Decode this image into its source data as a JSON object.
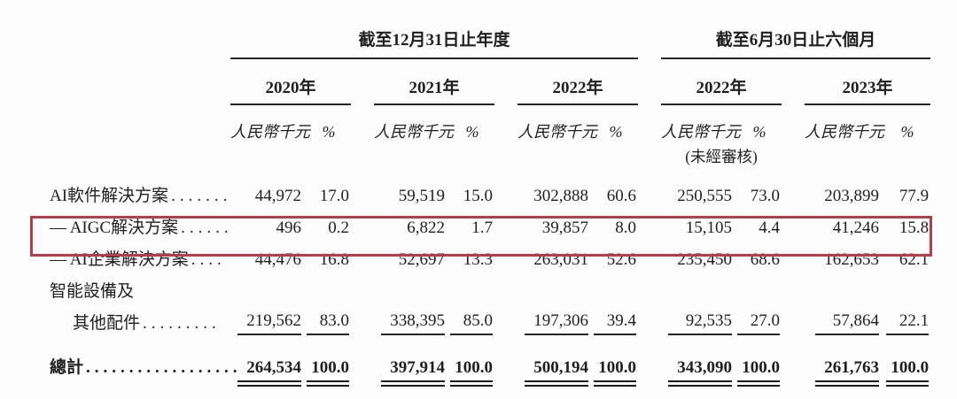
{
  "table": {
    "groups": [
      {
        "title": "截至12月31日止年度",
        "years": [
          "2020年",
          "2021年",
          "2022年"
        ]
      },
      {
        "title": "截至6月30日止六個月",
        "years": [
          "2022年",
          "2023年"
        ]
      }
    ],
    "amount_header": "人民幣千元",
    "percent_header": "%",
    "unaudited_note": "(未經審核)",
    "unaudited_under_year_index": 3,
    "highlight_color": "#b63c4a",
    "rows": [
      {
        "label": "AI軟件解決方案",
        "dots": ".......",
        "indent": false,
        "bold": false,
        "highlight": false,
        "rule_below": false,
        "double_rule": false,
        "cells": [
          [
            "44,972",
            "17.0"
          ],
          [
            "59,519",
            "15.0"
          ],
          [
            "302,888",
            "60.6"
          ],
          [
            "250,555",
            "73.0"
          ],
          [
            "203,899",
            "77.9"
          ]
        ]
      },
      {
        "label": "— AIGC解決方案",
        "dots": "......",
        "indent": false,
        "bold": false,
        "highlight": false,
        "rule_below": false,
        "double_rule": false,
        "cells": [
          [
            "496",
            "0.2"
          ],
          [
            "6,822",
            "1.7"
          ],
          [
            "39,857",
            "8.0"
          ],
          [
            "15,105",
            "4.4"
          ],
          [
            "41,246",
            "15.8"
          ]
        ]
      },
      {
        "label": "— AI企業解決方案",
        "dots": "....",
        "indent": false,
        "bold": false,
        "highlight": true,
        "rule_below": false,
        "double_rule": false,
        "cells": [
          [
            "44,476",
            "16.8"
          ],
          [
            "52,697",
            "13.3"
          ],
          [
            "263,031",
            "52.6"
          ],
          [
            "235,450",
            "68.6"
          ],
          [
            "162,653",
            "62.1"
          ]
        ]
      },
      {
        "label": "智能設備及",
        "dots": "",
        "indent": false,
        "bold": false,
        "highlight": false,
        "rule_below": false,
        "double_rule": false,
        "cells": null
      },
      {
        "label": "其他配件",
        "dots": ".........",
        "indent": true,
        "bold": false,
        "highlight": false,
        "rule_below": true,
        "double_rule": false,
        "cells": [
          [
            "219,562",
            "83.0"
          ],
          [
            "338,395",
            "85.0"
          ],
          [
            "197,306",
            "39.4"
          ],
          [
            "92,535",
            "27.0"
          ],
          [
            "57,864",
            "22.1"
          ]
        ]
      },
      {
        "label": "總計",
        "dots": "..................",
        "indent": false,
        "bold": true,
        "highlight": false,
        "rule_below": false,
        "double_rule": true,
        "cells": [
          [
            "264,534",
            "100.0"
          ],
          [
            "397,914",
            "100.0"
          ],
          [
            "500,194",
            "100.0"
          ],
          [
            "343,090",
            "100.0"
          ],
          [
            "261,763",
            "100.0"
          ]
        ]
      }
    ]
  }
}
